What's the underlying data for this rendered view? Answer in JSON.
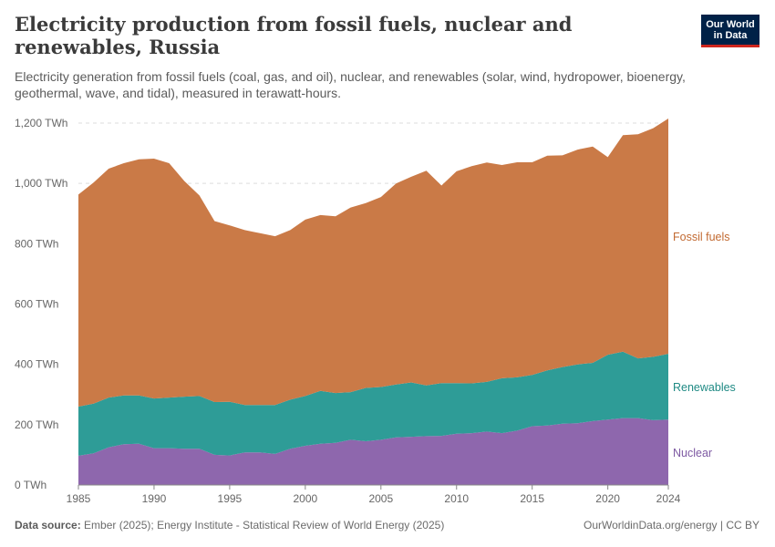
{
  "header": {
    "title": "Electricity production from fossil fuels, nuclear and renewables, Russia",
    "subtitle": "Electricity generation from fossil fuels (coal, gas, and oil), nuclear, and renewables (solar, wind, hydropower, bioenergy, geothermal, wave, and tidal), measured in terawatt-hours.",
    "logo_line1": "Our World",
    "logo_line2": "in Data"
  },
  "footer": {
    "source_label": "Data source:",
    "source_text": "Ember (2025); Energy Institute - Statistical Review of World Energy (2025)",
    "credit": "OurWorldinData.org/energy | CC BY"
  },
  "colors": {
    "fossil": "#ca7a47",
    "renewables": "#2e9c97",
    "nuclear": "#8e67ad",
    "fossil_label": "#c26a32",
    "renewables_label": "#1f8a84",
    "nuclear_label": "#7e5aa3",
    "grid": "#dddddd",
    "tick_text": "#666666"
  },
  "chart_data": {
    "type": "area",
    "stacked": true,
    "x": [
      1985,
      1986,
      1987,
      1988,
      1989,
      1990,
      1991,
      1992,
      1993,
      1994,
      1995,
      1996,
      1997,
      1998,
      1999,
      2000,
      2001,
      2002,
      2003,
      2004,
      2005,
      2006,
      2007,
      2008,
      2009,
      2010,
      2011,
      2012,
      2013,
      2014,
      2015,
      2016,
      2017,
      2018,
      2019,
      2020,
      2021,
      2022,
      2023,
      2024
    ],
    "series": [
      {
        "name": "Nuclear",
        "values": [
          97,
          105,
          125,
          135,
          137,
          122,
          122,
          120,
          120,
          100,
          98,
          108,
          108,
          103,
          120,
          130,
          137,
          140,
          150,
          145,
          150,
          158,
          160,
          162,
          163,
          170,
          172,
          177,
          172,
          180,
          195,
          197,
          203,
          205,
          212,
          217,
          222,
          222,
          215,
          217
        ]
      },
      {
        "name": "Renewables",
        "values": [
          163,
          165,
          165,
          162,
          160,
          165,
          168,
          173,
          175,
          175,
          178,
          157,
          157,
          162,
          163,
          165,
          175,
          165,
          158,
          177,
          175,
          175,
          180,
          168,
          175,
          168,
          165,
          165,
          182,
          177,
          170,
          183,
          188,
          195,
          193,
          215,
          220,
          198,
          210,
          218
        ]
      },
      {
        "name": "Fossil fuels",
        "values": [
          703,
          733,
          759,
          770,
          783,
          795,
          777,
          715,
          665,
          600,
          585,
          580,
          570,
          560,
          562,
          585,
          583,
          586,
          612,
          613,
          630,
          667,
          682,
          712,
          655,
          702,
          720,
          727,
          707,
          713,
          705,
          712,
          702,
          712,
          717,
          655,
          718,
          743,
          758,
          780
        ]
      }
    ],
    "title": "Electricity production from fossil fuels, nuclear and renewables, Russia",
    "xlabel": "",
    "ylabel": "",
    "xlim": [
      1985,
      2024
    ],
    "ylim": [
      0,
      1200
    ],
    "x_ticks": [
      1985,
      1990,
      1995,
      2000,
      2005,
      2010,
      2015,
      2020,
      2024
    ],
    "y_ticks": [
      {
        "value": 0,
        "label": "0 TWh"
      },
      {
        "value": 200,
        "label": "200 TWh"
      },
      {
        "value": 400,
        "label": "400 TWh"
      },
      {
        "value": 600,
        "label": "600 TWh"
      },
      {
        "value": 800,
        "label": "800 TWh"
      },
      {
        "value": 1000,
        "label": "1,000 TWh"
      },
      {
        "value": 1200,
        "label": "1,200 TWh"
      }
    ],
    "grid": true,
    "legend": "right, labels beside series"
  }
}
